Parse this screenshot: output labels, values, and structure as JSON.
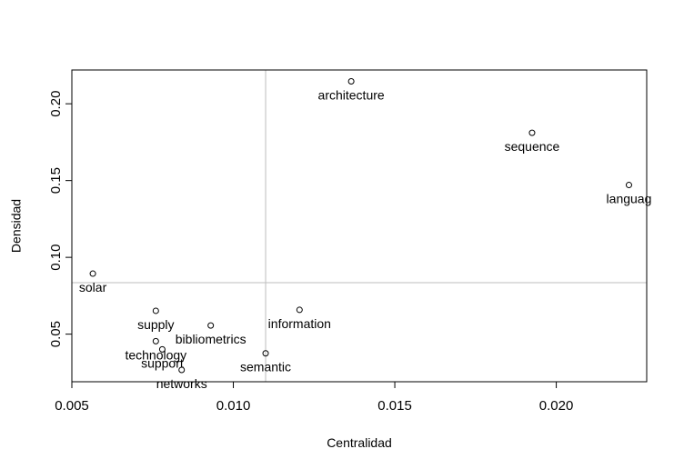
{
  "chart_data": {
    "type": "scatter",
    "xlabel": "Centralidad",
    "ylabel": "Densidad",
    "xlim": [
      0.005,
      0.0228
    ],
    "ylim": [
      0.019,
      0.222
    ],
    "xticks": [
      0.005,
      0.01,
      0.015,
      0.02
    ],
    "xtick_labels": [
      "0.005",
      "0.010",
      "0.015",
      "0.020"
    ],
    "yticks": [
      0.05,
      0.1,
      0.15,
      0.2
    ],
    "ytick_labels": [
      "0.05",
      "0.10",
      "0.15",
      "0.20"
    ],
    "reference_lines": {
      "x": 0.011,
      "y": 0.0835
    },
    "grid": false,
    "colors": {
      "points": "#000000",
      "reference": "#bebebe",
      "axes": "#000000"
    },
    "points": [
      {
        "label": "architecture",
        "x": 0.01365,
        "y": 0.2146
      },
      {
        "label": "sequence",
        "x": 0.01925,
        "y": 0.1811
      },
      {
        "label": "languag",
        "x": 0.02225,
        "y": 0.1471
      },
      {
        "label": "solar",
        "x": 0.00565,
        "y": 0.0894
      },
      {
        "label": "information",
        "x": 0.01205,
        "y": 0.0658
      },
      {
        "label": "supply",
        "x": 0.0076,
        "y": 0.0652
      },
      {
        "label": "bibliometrics",
        "x": 0.0093,
        "y": 0.0556
      },
      {
        "label": "technology",
        "x": 0.0076,
        "y": 0.0454
      },
      {
        "label": "support",
        "x": 0.0078,
        "y": 0.0401
      },
      {
        "label": "semantic",
        "x": 0.011,
        "y": 0.0375
      },
      {
        "label": "networks",
        "x": 0.0084,
        "y": 0.0267
      }
    ]
  }
}
